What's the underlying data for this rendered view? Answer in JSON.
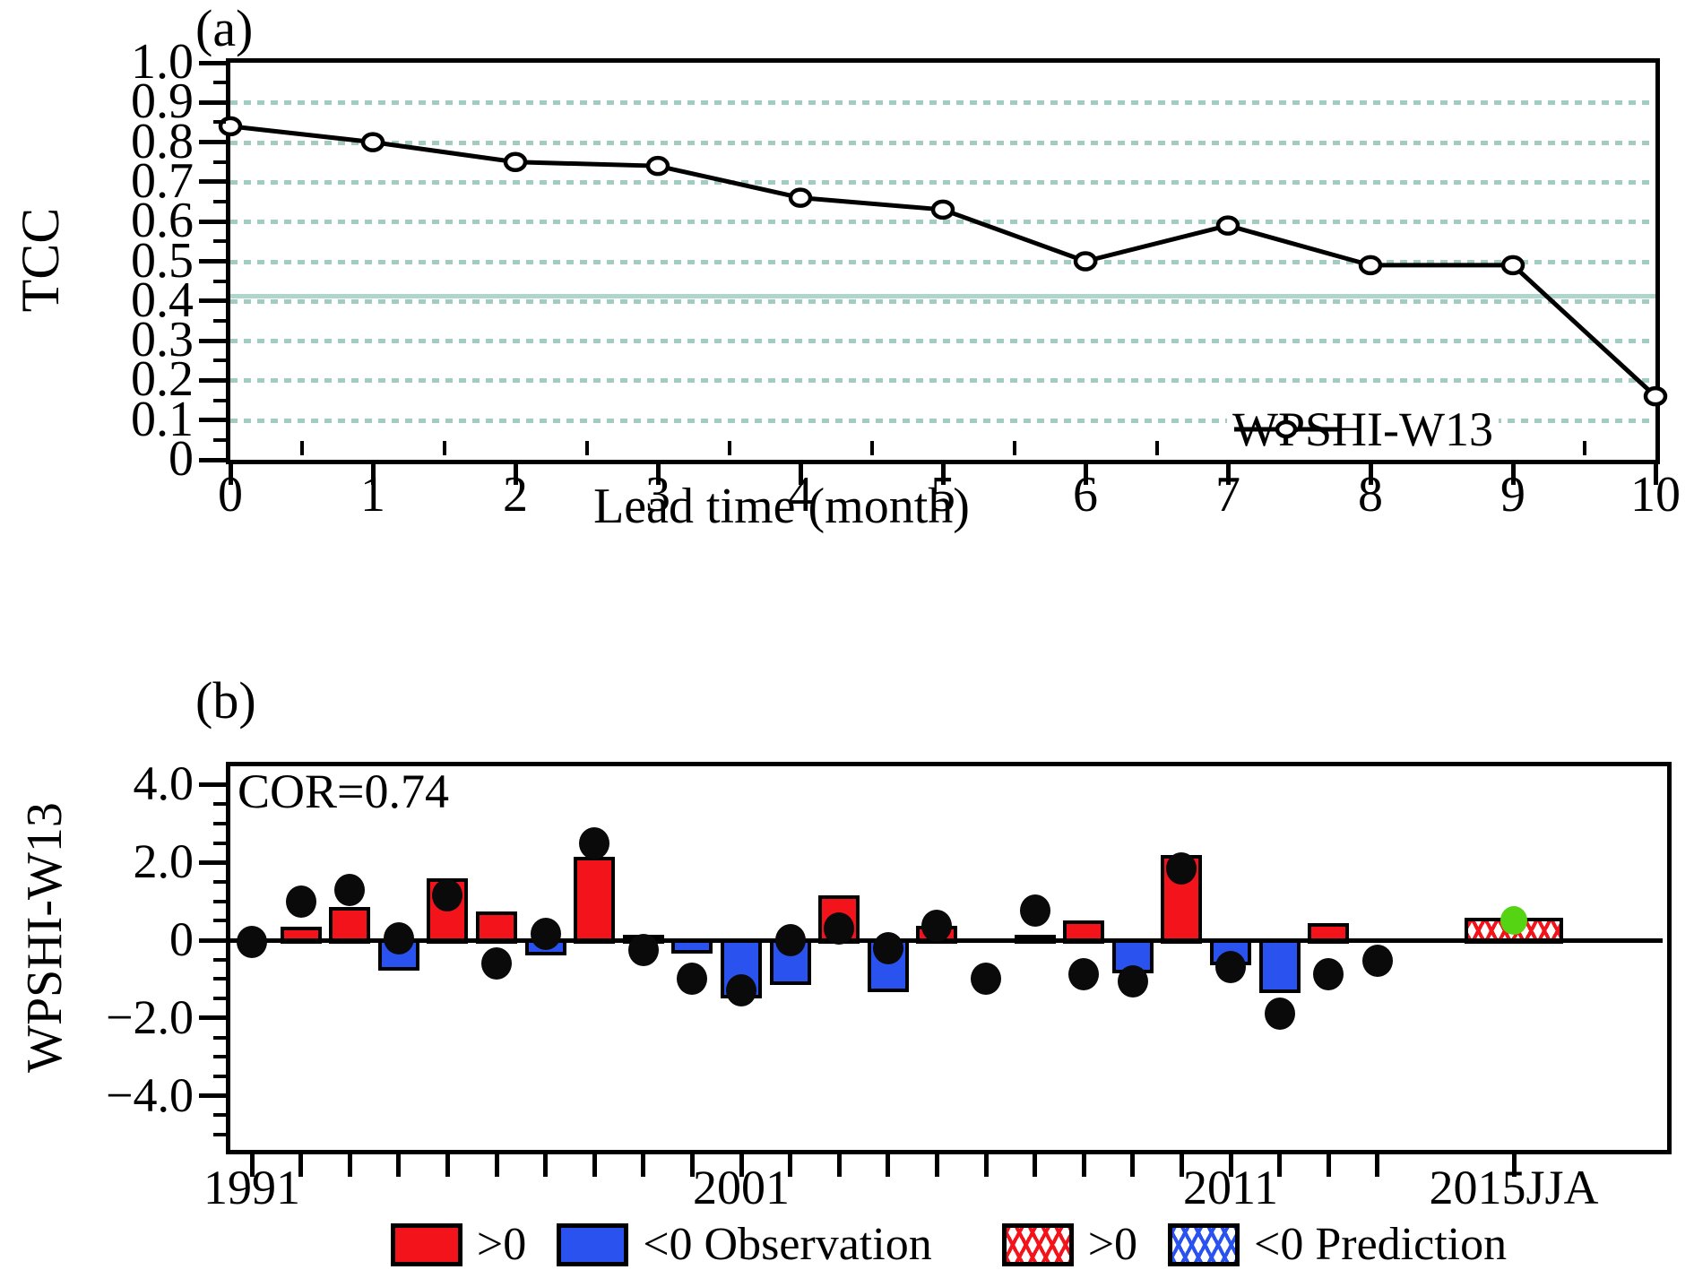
{
  "figure": {
    "panel_a": {
      "label": "(a)",
      "ylabel": "TCC",
      "xlabel": "Lead time (month)",
      "legend_label": "WPSHI-W13"
    },
    "panel_b": {
      "label": "(b)",
      "ylabel": "WPSHI-W13",
      "annotation": "COR=0.74",
      "x_axis_labels": [
        "1991",
        "2001",
        "2011",
        "2015JJA"
      ],
      "legend": {
        "items": [
          {
            "label": ">0",
            "swatch": "red-solid"
          },
          {
            "label": "<0 Observation",
            "swatch": "blue-solid"
          },
          {
            "label": ">0",
            "swatch": "red-hatched"
          },
          {
            "label": "<0 Prediction",
            "swatch": "blue-hatched"
          }
        ]
      }
    }
  },
  "colors": {
    "line": "#000000",
    "marker_fill": "#ffffff",
    "observation_positive": "#f3131b",
    "observation_negative": "#2a52ee",
    "prediction_dot": "#0a0a0a",
    "prediction_2015_dot": "#55d414",
    "gridline_dashed": "#a2cbc2",
    "significance_line": "#aed6cd"
  },
  "chart_data": [
    {
      "type": "line",
      "panel": "a",
      "title": "(a)",
      "xlabel": "Lead time (month)",
      "ylabel": "TCC",
      "xlim": [
        0,
        10
      ],
      "ylim": [
        0,
        1.0
      ],
      "xticks": {
        "values": [
          0,
          1,
          2,
          3,
          4,
          5,
          6,
          7,
          8,
          9,
          10
        ],
        "labels": [
          "0",
          "1",
          "2",
          "3",
          "4",
          "5",
          "6",
          "7",
          "8",
          "9",
          "10"
        ],
        "minor_step": 0.5
      },
      "yticks": {
        "values": [
          0,
          0.1,
          0.2,
          0.3,
          0.4,
          0.5,
          0.6,
          0.7,
          0.8,
          0.9,
          1.0
        ],
        "labels": [
          "0",
          "0.1",
          "0.2",
          "0.3",
          "0.4",
          "0.5",
          "0.6",
          "0.7",
          "0.8",
          "0.9",
          "1.0"
        ],
        "minor_step": 0.05
      },
      "gridlines": {
        "dashed_at": [
          0.1,
          0.2,
          0.3,
          0.4,
          0.5,
          0.6,
          0.7,
          0.8,
          0.9
        ],
        "solid_at": 0.41
      },
      "legend_position": "lower-right",
      "series": [
        {
          "name": "WPSHI-W13",
          "marker": "open-circle",
          "x": [
            0,
            1,
            2,
            3,
            4,
            5,
            6,
            7,
            8,
            9,
            10
          ],
          "y": [
            0.84,
            0.8,
            0.75,
            0.74,
            0.66,
            0.63,
            0.5,
            0.59,
            0.49,
            0.49,
            0.16
          ]
        }
      ]
    },
    {
      "type": "bar",
      "panel": "b",
      "title": "(b)",
      "ylabel": "WPSHI-W13",
      "annotation": "COR=0.74",
      "ylim": [
        -4.5,
        4.5
      ],
      "yticks": {
        "values": [
          -4,
          -2,
          0,
          2,
          4
        ],
        "labels": [
          "−4.0",
          "−2.0",
          "0",
          "2.0",
          "4.0"
        ],
        "minor_step": 0.5
      },
      "categories": [
        "1991",
        "1992",
        "1993",
        "1994",
        "1995",
        "1996",
        "1997",
        "1998",
        "1999",
        "2000",
        "2001",
        "2002",
        "2003",
        "2004",
        "2005",
        "2006",
        "2007",
        "2008",
        "2009",
        "2010",
        "2011",
        "2012",
        "2013",
        "2014"
      ],
      "labeled_year_indices": [
        0,
        10,
        20
      ],
      "series": [
        {
          "name": "Observation (solid bars)",
          "values": [
            0,
            0.3,
            0.8,
            -0.7,
            1.55,
            0.7,
            -0.3,
            2.1,
            0.1,
            -0.25,
            -1.4,
            -1.05,
            1.1,
            -1.25,
            0.32,
            0,
            0.1,
            0.45,
            -0.75,
            2.15,
            -0.55,
            -1.27,
            0.4,
            0
          ]
        },
        {
          "name": "Prediction (black dots)",
          "values": [
            -0.05,
            1.0,
            1.3,
            0.05,
            1.15,
            -0.6,
            0.15,
            2.5,
            -0.25,
            -1.0,
            -1.3,
            0.0,
            0.3,
            -0.2,
            0.37,
            -1.0,
            0.75,
            -0.88,
            -1.05,
            1.85,
            -0.68,
            -1.88,
            -0.87,
            -0.52
          ]
        }
      ],
      "special": {
        "category": "2015JJA",
        "bar_value": 0.48,
        "bar_style": "red-hatched",
        "dot_value": 0.5,
        "dot_style": "green"
      }
    }
  ]
}
